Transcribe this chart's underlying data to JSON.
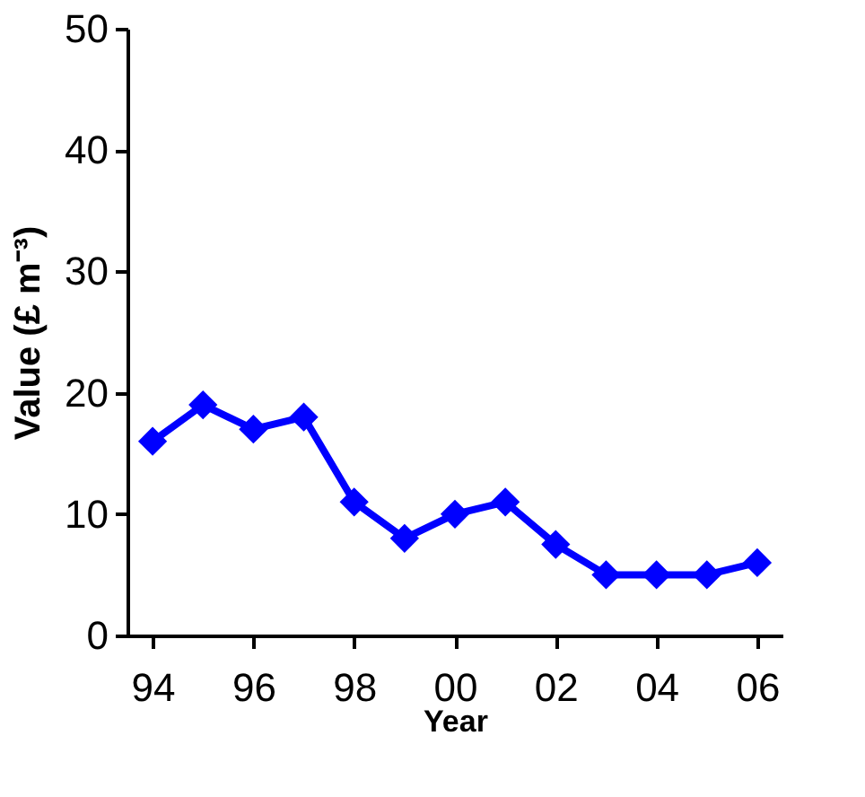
{
  "chart_data": {
    "type": "line",
    "xlabel": "Year",
    "ylabel": "Value (£ m⁻³)",
    "categories": [
      "94",
      null,
      "96",
      null,
      "98",
      null,
      "00",
      null,
      "02",
      null,
      "04",
      null,
      "06"
    ],
    "series": [
      {
        "color": "#0000ff",
        "values": [
          16,
          19,
          17,
          18,
          11,
          8,
          10,
          11,
          7.5,
          5,
          5,
          5,
          6
        ]
      }
    ],
    "ylim": [
      0,
      50
    ],
    "yticks": [
      0,
      10,
      20,
      30,
      40,
      50
    ],
    "grid": false,
    "marker": "diamond",
    "line_style": "solid"
  }
}
